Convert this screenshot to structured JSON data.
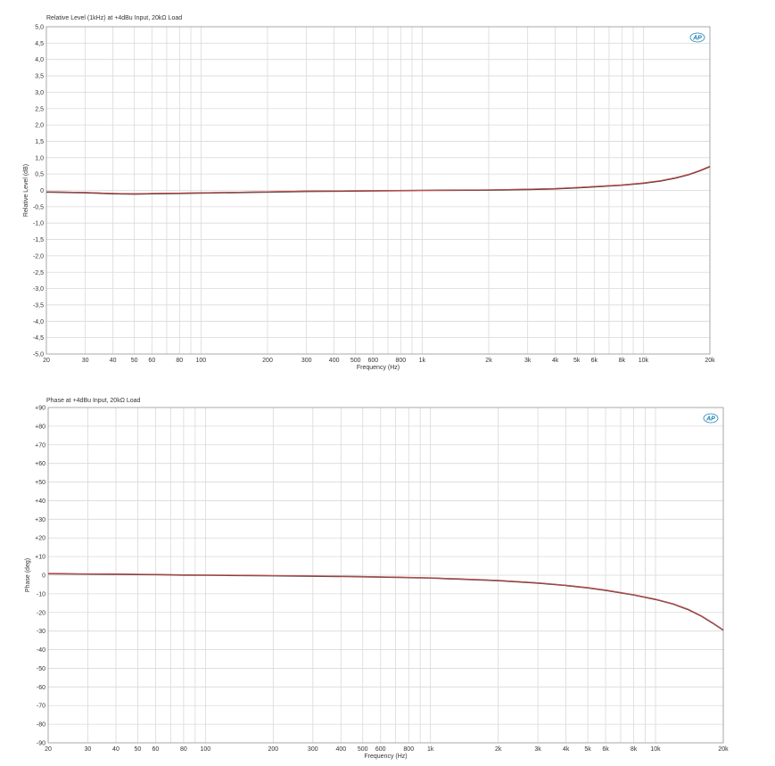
{
  "chart_data": [
    {
      "type": "line",
      "title": "Relative Level (1kHz) at +4dBu Input, 20kΩ Load",
      "xlabel": "Frequency (Hz)",
      "ylabel": "Relative Level (dB)",
      "xscale": "log",
      "xlim": [
        20,
        20000
      ],
      "ylim": [
        -5,
        5
      ],
      "x_ticks": [
        20,
        30,
        40,
        50,
        60,
        80,
        100,
        200,
        300,
        400,
        500,
        600,
        800,
        1000,
        2000,
        3000,
        4000,
        5000,
        6000,
        8000,
        10000,
        20000
      ],
      "x_tick_labels": [
        "20",
        "30",
        "40",
        "50",
        "60",
        "80",
        "100",
        "200",
        "300",
        "400",
        "500",
        "600",
        "800",
        "1k",
        "2k",
        "3k",
        "4k",
        "5k",
        "6k",
        "8k",
        "10k",
        "20k"
      ],
      "y_ticks": [
        5,
        4.5,
        4,
        3.5,
        3,
        2.5,
        2,
        1.5,
        1,
        0.5,
        0,
        -0.5,
        -1,
        -1.5,
        -2,
        -2.5,
        -3,
        -3.5,
        -4,
        -4.5,
        -5
      ],
      "y_tick_labels": [
        "5,0",
        "4,5",
        "4,0",
        "3,5",
        "3,0",
        "2,5",
        "2,0",
        "1,5",
        "1,0",
        "0,5",
        "0",
        "-0,5",
        "-1,0",
        "-1,5",
        "-2,0",
        "-2,5",
        "-3,0",
        "-3,5",
        "-4,0",
        "-4,5",
        "-5,0"
      ],
      "grid": true,
      "logo": "AP",
      "series": [
        {
          "color": "#3a3a3a",
          "x": [
            20,
            30,
            40,
            50,
            60,
            80,
            100,
            200,
            300,
            500,
            1000,
            2000,
            3000,
            4000,
            5000,
            6000,
            8000,
            10000,
            12000,
            14000,
            16000,
            18000,
            20000
          ],
          "y": [
            -0.05,
            -0.07,
            -0.1,
            -0.11,
            -0.1,
            -0.09,
            -0.08,
            -0.05,
            -0.03,
            -0.02,
            0,
            0.01,
            0.03,
            0.05,
            0.08,
            0.11,
            0.16,
            0.22,
            0.29,
            0.38,
            0.48,
            0.6,
            0.73
          ]
        },
        {
          "color": "#e04848",
          "x": [
            20,
            30,
            40,
            50,
            60,
            80,
            100,
            200,
            300,
            500,
            1000,
            2000,
            3000,
            4000,
            5000,
            6000,
            8000,
            10000,
            12000,
            14000,
            16000,
            18000,
            20000
          ],
          "y": [
            -0.04,
            -0.06,
            -0.09,
            -0.1,
            -0.09,
            -0.08,
            -0.07,
            -0.04,
            -0.02,
            -0.01,
            0,
            0.02,
            0.04,
            0.06,
            0.09,
            0.12,
            0.17,
            0.23,
            0.3,
            0.39,
            0.49,
            0.61,
            0.74
          ]
        }
      ]
    },
    {
      "type": "line",
      "title": "Phase at +4dBu Input, 20kΩ Load",
      "xlabel": "Frequency (Hz)",
      "ylabel": "Phase (deg)",
      "xscale": "log",
      "xlim": [
        20,
        20000
      ],
      "ylim": [
        -90,
        90
      ],
      "x_ticks": [
        20,
        30,
        40,
        50,
        60,
        80,
        100,
        200,
        300,
        400,
        500,
        600,
        800,
        1000,
        2000,
        3000,
        4000,
        5000,
        6000,
        8000,
        10000,
        20000
      ],
      "x_tick_labels": [
        "20",
        "30",
        "40",
        "50",
        "60",
        "80",
        "100",
        "200",
        "300",
        "400",
        "500",
        "600",
        "800",
        "1k",
        "2k",
        "3k",
        "4k",
        "5k",
        "6k",
        "8k",
        "10k",
        "20k"
      ],
      "y_ticks": [
        90,
        80,
        70,
        60,
        50,
        40,
        30,
        20,
        10,
        0,
        -10,
        -20,
        -30,
        -40,
        -50,
        -60,
        -70,
        -80,
        -90
      ],
      "y_tick_labels": [
        "+90",
        "+80",
        "+70",
        "+60",
        "+50",
        "+40",
        "+30",
        "+20",
        "+10",
        "0",
        "-10",
        "-20",
        "-30",
        "-40",
        "-50",
        "-60",
        "-70",
        "-80",
        "-90"
      ],
      "grid": true,
      "logo": "AP",
      "series": [
        {
          "color": "#3a3a3a",
          "x": [
            20,
            30,
            40,
            50,
            60,
            80,
            100,
            200,
            300,
            500,
            1000,
            2000,
            3000,
            4000,
            5000,
            6000,
            8000,
            10000,
            12000,
            14000,
            16000,
            18000,
            20000
          ],
          "y": [
            0.8,
            0.6,
            0.5,
            0.4,
            0.3,
            0.1,
            0,
            -0.3,
            -0.5,
            -0.8,
            -1.5,
            -2.9,
            -4.2,
            -5.5,
            -6.8,
            -8.1,
            -10.6,
            -13,
            -15.5,
            -18.5,
            -22,
            -25.8,
            -29.5
          ]
        },
        {
          "color": "#e04848",
          "x": [
            20,
            30,
            40,
            50,
            60,
            80,
            100,
            200,
            300,
            500,
            1000,
            2000,
            3000,
            4000,
            5000,
            6000,
            8000,
            10000,
            12000,
            14000,
            16000,
            18000,
            20000
          ],
          "y": [
            0.9,
            0.7,
            0.6,
            0.5,
            0.4,
            0.2,
            0.1,
            -0.2,
            -0.4,
            -0.7,
            -1.4,
            -2.8,
            -4.1,
            -5.4,
            -6.7,
            -8,
            -10.5,
            -12.9,
            -15.4,
            -18.4,
            -21.9,
            -25.7,
            -29.4
          ]
        }
      ]
    }
  ]
}
